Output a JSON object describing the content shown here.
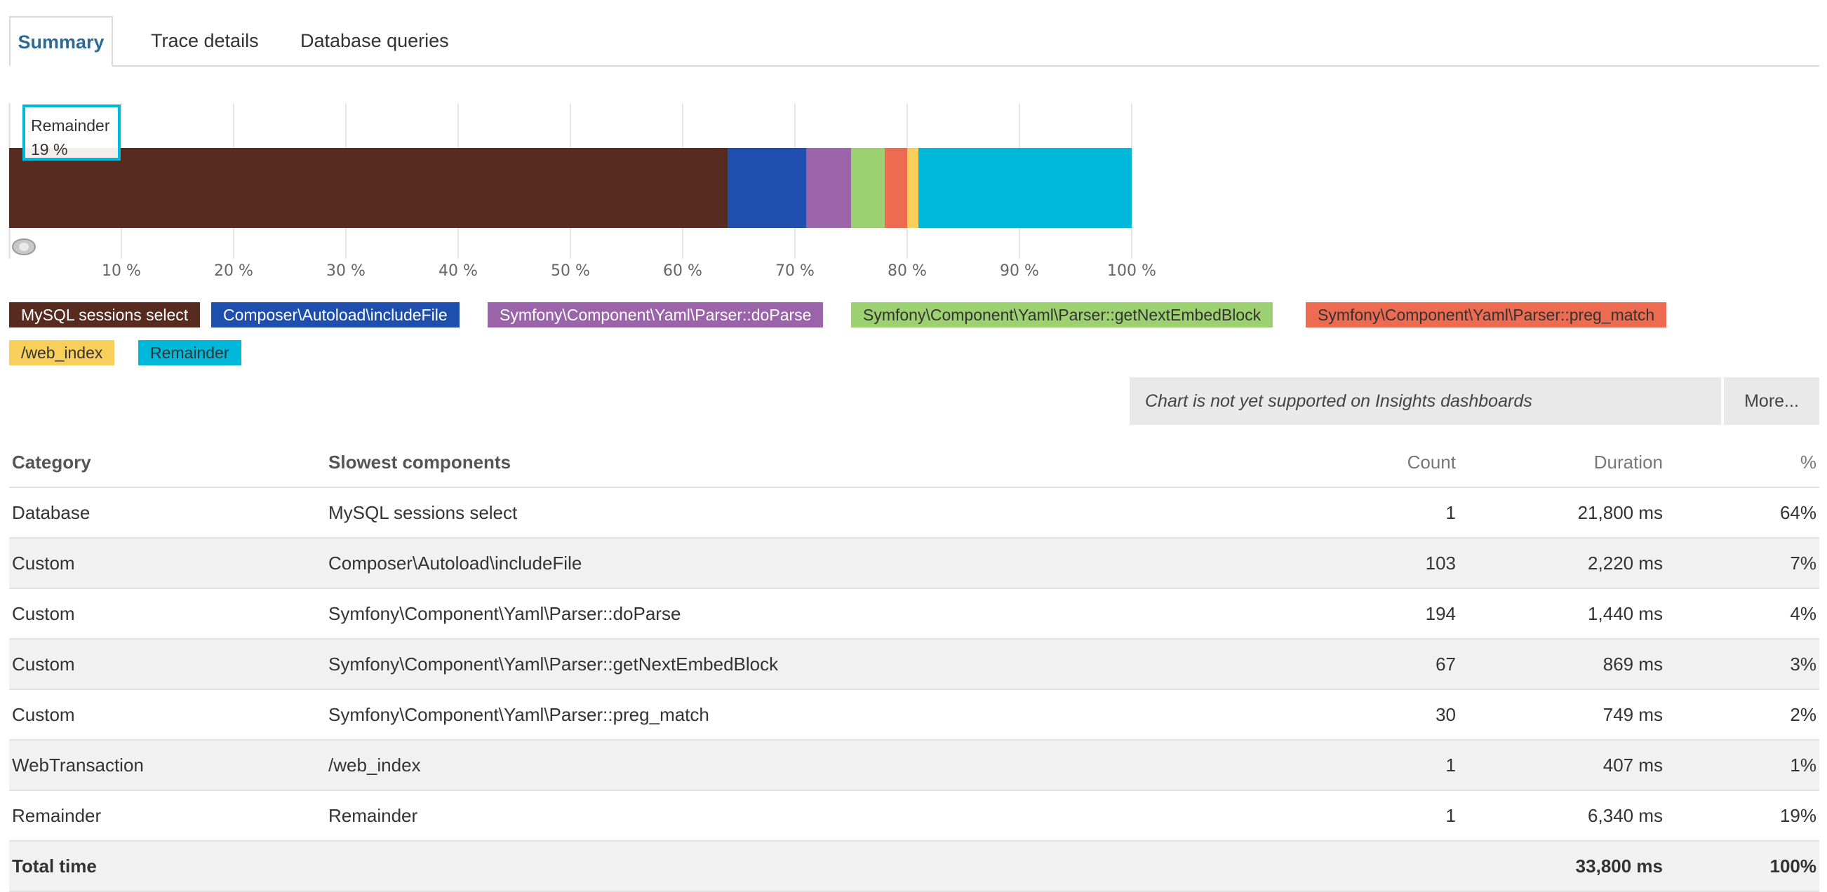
{
  "tabs": [
    {
      "label": "Summary",
      "active": true
    },
    {
      "label": "Trace details",
      "active": false
    },
    {
      "label": "Database queries",
      "active": false
    }
  ],
  "chart_data": {
    "type": "bar",
    "orientation": "horizontal-stacked",
    "xlim": [
      0,
      100
    ],
    "x_ticks": [
      "10 %",
      "20 %",
      "30 %",
      "40 %",
      "50 %",
      "60 %",
      "70 %",
      "80 %",
      "90 %",
      "100 %"
    ],
    "grid": true,
    "series": [
      {
        "name": "MySQL sessions select",
        "value": 64,
        "color": "#582b20"
      },
      {
        "name": "Composer\\Autoload\\includeFile",
        "value": 7,
        "color": "#1e4fae"
      },
      {
        "name": "Symfony\\Component\\Yaml\\Parser::doParse",
        "value": 4,
        "color": "#9b63aa"
      },
      {
        "name": "Symfony\\Component\\Yaml\\Parser::getNextEmbedBlock",
        "value": 3,
        "color": "#9dd070"
      },
      {
        "name": "Symfony\\Component\\Yaml\\Parser::preg_match",
        "value": 2,
        "color": "#ed6b50"
      },
      {
        "name": "/web_index",
        "value": 1,
        "color": "#f7cf5a"
      },
      {
        "name": "Remainder",
        "value": 19,
        "color": "#00b8d9"
      }
    ],
    "tooltip": {
      "label": "Remainder",
      "value": "19 %"
    }
  },
  "legend": {
    "items": [
      {
        "label": "MySQL sessions select",
        "bg": "#582b20",
        "fg": "#ffffff"
      },
      {
        "label": "Composer\\Autoload\\includeFile",
        "bg": "#1e4fae",
        "fg": "#ffffff"
      },
      {
        "label": "Symfony\\Component\\Yaml\\Parser::doParse",
        "bg": "#9b63aa",
        "fg": "#ffffff"
      },
      {
        "label": "Symfony\\Component\\Yaml\\Parser::getNextEmbedBlock",
        "bg": "#9dd070",
        "fg": "#333333"
      },
      {
        "label": "Symfony\\Component\\Yaml\\Parser::preg_match",
        "bg": "#ed6b50",
        "fg": "#333333"
      },
      {
        "label": "/web_index",
        "bg": "#f7cf5a",
        "fg": "#333333"
      },
      {
        "label": "Remainder",
        "bg": "#00b8d9",
        "fg": "#333333"
      }
    ]
  },
  "notice": {
    "text": "Chart is not yet supported on Insights dashboards",
    "more_label": "More..."
  },
  "table": {
    "headers": {
      "category": "Category",
      "components": "Slowest components",
      "count": "Count",
      "duration": "Duration",
      "percent": "%"
    },
    "rows": [
      {
        "category": "Database",
        "component": "MySQL sessions select",
        "count": "1",
        "duration": "21,800 ms",
        "percent": "64%"
      },
      {
        "category": "Custom",
        "component": "Composer\\Autoload\\includeFile",
        "count": "103",
        "duration": "2,220 ms",
        "percent": "7%"
      },
      {
        "category": "Custom",
        "component": "Symfony\\Component\\Yaml\\Parser::doParse",
        "count": "194",
        "duration": "1,440 ms",
        "percent": "4%"
      },
      {
        "category": "Custom",
        "component": "Symfony\\Component\\Yaml\\Parser::getNextEmbedBlock",
        "count": "67",
        "duration": "869 ms",
        "percent": "3%"
      },
      {
        "category": "Custom",
        "component": "Symfony\\Component\\Yaml\\Parser::preg_match",
        "count": "30",
        "duration": "749 ms",
        "percent": "2%"
      },
      {
        "category": "WebTransaction",
        "component": "/web_index",
        "count": "1",
        "duration": "407 ms",
        "percent": "1%"
      },
      {
        "category": "Remainder",
        "component": "Remainder",
        "count": "1",
        "duration": "6,340 ms",
        "percent": "19%"
      }
    ],
    "total": {
      "label": "Total time",
      "duration": "33,800 ms",
      "percent": "100%"
    }
  }
}
